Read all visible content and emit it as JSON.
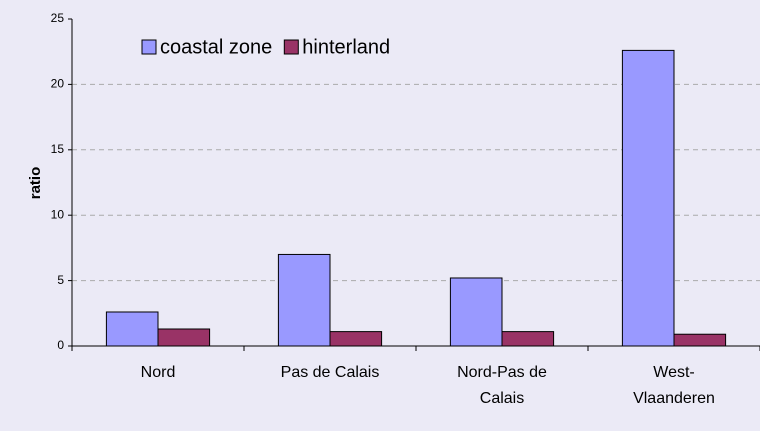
{
  "chart_data": {
    "type": "bar",
    "y_label": "ratio",
    "categories": [
      "Nord",
      "Pas de Calais",
      "Nord-Pas de Calais",
      "West-Vlaanderen"
    ],
    "series": [
      {
        "name": "coastal zone",
        "color": "#9999ff",
        "values": [
          2.6,
          7.0,
          5.2,
          22.6
        ]
      },
      {
        "name": "hinterland",
        "color": "#993366",
        "values": [
          1.3,
          1.1,
          1.1,
          0.9
        ]
      }
    ],
    "ylim": [
      0,
      25
    ],
    "yticks": [
      0,
      5,
      10,
      15,
      20,
      25
    ],
    "grid": true,
    "legend": "top-left"
  }
}
